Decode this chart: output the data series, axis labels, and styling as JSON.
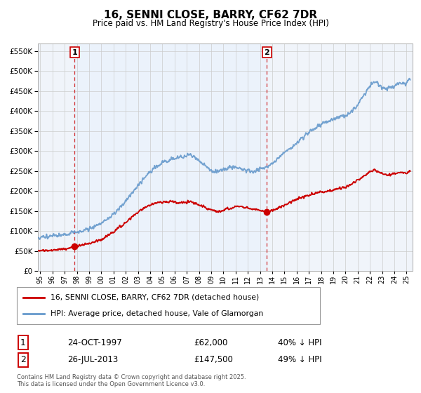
{
  "title": "16, SENNI CLOSE, BARRY, CF62 7DR",
  "subtitle": "Price paid vs. HM Land Registry's House Price Index (HPI)",
  "legend_line1": "16, SENNI CLOSE, BARRY, CF62 7DR (detached house)",
  "legend_line2": "HPI: Average price, detached house, Vale of Glamorgan",
  "purchase1_date": "24-OCT-1997",
  "purchase1_price": "£62,000",
  "purchase1_hpi": "40% ↓ HPI",
  "purchase2_date": "26-JUL-2013",
  "purchase2_price": "£147,500",
  "purchase2_hpi": "49% ↓ HPI",
  "footer": "Contains HM Land Registry data © Crown copyright and database right 2025.\nThis data is licensed under the Open Government Licence v3.0.",
  "purchase1_x": 1997.81,
  "purchase1_y": 62000,
  "purchase2_x": 2013.56,
  "purchase2_y": 147500,
  "ylim": [
    0,
    570000
  ],
  "xlim": [
    1994.8,
    2025.5
  ],
  "red_color": "#cc0000",
  "blue_color": "#6699cc",
  "shade_color": "#ddeeff",
  "background_color": "#f0f4fa",
  "grid_color": "#cccccc",
  "yticks": [
    0,
    50000,
    100000,
    150000,
    200000,
    250000,
    300000,
    350000,
    400000,
    450000,
    500000,
    550000
  ]
}
